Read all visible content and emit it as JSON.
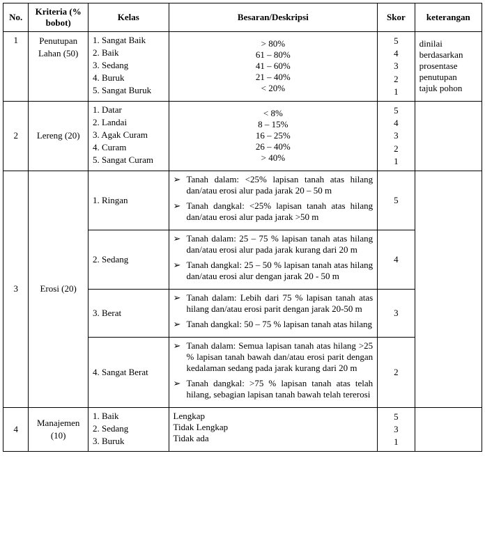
{
  "headers": {
    "no": "No.",
    "kriteria": "Kriteria (% bobot)",
    "kelas": "Kelas",
    "besaran": "Besaran/Deskripsi",
    "skor": "Skor",
    "keterangan": "keterangan"
  },
  "rows": [
    {
      "no": "1",
      "kriteria": "Penutupan Lahan (50)",
      "kelas": [
        "1. Sangat Baik",
        "2. Baik",
        "3. Sedang",
        "4. Buruk",
        "5. Sangat Buruk"
      ],
      "besaran_lines": [
        "> 80%",
        "61 – 80%",
        "41 – 60%",
        "21 – 40%",
        "< 20%"
      ],
      "skor_lines": [
        "5",
        "4",
        "3",
        "2",
        "1"
      ],
      "keterangan": "dinilai berdasarkan prosentase penutupan tajuk pohon"
    },
    {
      "no": "2",
      "kriteria": "Lereng (20)",
      "kelas": [
        "1.  Datar",
        "2. Landai",
        "3. Agak Curam",
        "4. Curam",
        "5. Sangat Curam"
      ],
      "besaran_lines": [
        "< 8%",
        "8 – 15%",
        "16 – 25%",
        "26 – 40%",
        "> 40%"
      ],
      "skor_lines": [
        "5",
        "4",
        "3",
        "2",
        "1"
      ],
      "keterangan": ""
    },
    {
      "no": "3",
      "kriteria": "Erosi (20)",
      "subrows": [
        {
          "kelas": "1. Ringan",
          "bullets": [
            "Tanah dalam: <25% lapisan tanah atas hilang dan/atau erosi alur pada jarak 20 – 50 m",
            "Tanah dangkal: <25% lapisan tanah atas hilang dan/atau erosi alur pada jarak >50 m"
          ],
          "skor": "5"
        },
        {
          "kelas": "2.  Sedang",
          "bullets": [
            "Tanah dalam: 25 – 75 % lapisan tanah atas hilang dan/atau erosi alur pada jarak kurang dari 20 m",
            "Tanah dangkal: 25 – 50 % lapisan tanah atas hilang dan/atau erosi alur dengan jarak 20 - 50 m"
          ],
          "skor": "4"
        },
        {
          "kelas": "3.  Berat",
          "bullets": [
            "Tanah dalam: Lebih dari 75 % lapisan tanah atas hilang dan/atau erosi parit dengan jarak 20-50 m",
            "Tanah dangkal: 50 – 75 % lapisan tanah atas hilang"
          ],
          "skor": "3"
        },
        {
          "kelas": "4.  Sangat Berat",
          "bullets": [
            "Tanah dalam: Semua lapisan tanah atas hilang >25 % lapisan tanah bawah dan/atau erosi parit dengan kedalaman sedang pada jarak kurang dari 20 m",
            "Tanah dangkal: >75 % lapisan tanah atas telah hilang, sebagian lapisan tanah bawah telah tererosi"
          ],
          "skor": "2"
        }
      ],
      "keterangan": ""
    },
    {
      "no": "4",
      "kriteria": "Manajemen (10)",
      "kelas": [
        "1.  Baik",
        "2.  Sedang",
        "3.  Buruk"
      ],
      "besaran_lines": [
        "Lengkap",
        "Tidak Lengkap",
        "Tidak ada"
      ],
      "skor_lines": [
        "5",
        "3",
        "1"
      ],
      "keterangan": ""
    }
  ]
}
